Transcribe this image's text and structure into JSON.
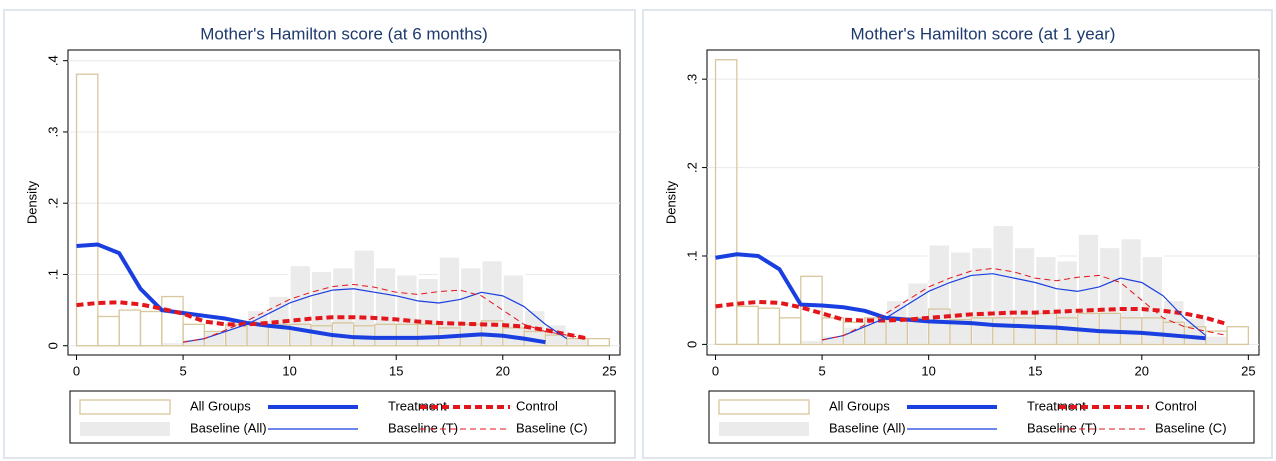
{
  "chart_data": [
    {
      "type": "histogram",
      "title": "Mother's Hamilton score (at 6 months)",
      "y_label": "Density",
      "xlim": [
        -0.4,
        25.5
      ],
      "xticks": [
        0,
        5,
        10,
        15,
        20,
        25
      ],
      "ylim": [
        -0.013,
        0.415
      ],
      "yticks": [
        0,
        {
          "value": 0.1,
          "label": ".1"
        },
        {
          "value": 0.2,
          "label": ".2"
        },
        {
          "value": 0.3,
          "label": ".3"
        },
        {
          "value": 0.4,
          "label": ".4"
        }
      ],
      "grid": true,
      "series": [
        {
          "name": "All Groups",
          "kind": "bar",
          "color": "#d8c79c",
          "bins": [
            0,
            1,
            2,
            3,
            4,
            5,
            6,
            7,
            8,
            9,
            10,
            11,
            12,
            13,
            14,
            15,
            16,
            17,
            18,
            19,
            20,
            21,
            22,
            23,
            24,
            25
          ],
          "values": [
            0.381,
            0.041,
            0.05,
            0.048,
            0.069,
            0.03,
            0.02,
            0.03,
            0.03,
            0.03,
            0.03,
            0.028,
            0.032,
            0.028,
            0.03,
            0.03,
            0.03,
            0.025,
            0.03,
            0.035,
            0.025,
            0.02,
            0.015,
            0.01,
            0.01
          ]
        },
        {
          "name": "Treatment",
          "kind": "line",
          "color": "#1a3fe0",
          "width": 4,
          "dash": false,
          "x": [
            0,
            1,
            2,
            3,
            4,
            5,
            6,
            7,
            8,
            9,
            10,
            11,
            12,
            13,
            14,
            15,
            16,
            17,
            18,
            19,
            20,
            21,
            22
          ],
          "values": [
            0.14,
            0.142,
            0.13,
            0.08,
            0.05,
            0.046,
            0.042,
            0.038,
            0.032,
            0.028,
            0.025,
            0.02,
            0.015,
            0.012,
            0.011,
            0.011,
            0.011,
            0.012,
            0.014,
            0.016,
            0.014,
            0.01,
            0.005
          ]
        },
        {
          "name": "Control",
          "kind": "line",
          "color": "#e3161c",
          "width": 4,
          "dash": true,
          "x": [
            0,
            1,
            2,
            3,
            4,
            5,
            6,
            7,
            8,
            9,
            10,
            11,
            12,
            13,
            14,
            15,
            16,
            17,
            18,
            19,
            20,
            21,
            22,
            23,
            24
          ],
          "values": [
            0.057,
            0.06,
            0.061,
            0.058,
            0.052,
            0.045,
            0.034,
            0.03,
            0.03,
            0.032,
            0.035,
            0.038,
            0.04,
            0.04,
            0.039,
            0.037,
            0.034,
            0.032,
            0.031,
            0.03,
            0.029,
            0.027,
            0.022,
            0.016,
            0.01
          ]
        },
        {
          "name": "Baseline (All)",
          "kind": "bar",
          "color": "#ebebeb",
          "bins": [
            4,
            5,
            6,
            7,
            8,
            9,
            10,
            11,
            12,
            13,
            14,
            15,
            16,
            17,
            18,
            19,
            20,
            21,
            22,
            23,
            24
          ],
          "values": [
            0.005,
            0.01,
            0.02,
            0.03,
            0.05,
            0.07,
            0.113,
            0.105,
            0.11,
            0.135,
            0.11,
            0.1,
            0.095,
            0.125,
            0.11,
            0.12,
            0.1,
            0.05,
            0.03,
            0.01
          ]
        },
        {
          "name": "Baseline (T)",
          "kind": "line",
          "color": "#1a3fe0",
          "width": 1.2,
          "dash": false,
          "x": [
            5,
            6,
            7,
            8,
            9,
            10,
            11,
            12,
            13,
            14,
            15,
            16,
            17,
            18,
            19,
            20,
            21,
            22,
            23
          ],
          "values": [
            0.005,
            0.01,
            0.02,
            0.03,
            0.045,
            0.06,
            0.07,
            0.078,
            0.08,
            0.075,
            0.07,
            0.063,
            0.06,
            0.065,
            0.075,
            0.07,
            0.055,
            0.03,
            0.01
          ]
        },
        {
          "name": "Baseline (C)",
          "kind": "line",
          "color": "#e3161c",
          "width": 1,
          "dash": true,
          "x": [
            5,
            6,
            7,
            8,
            9,
            10,
            11,
            12,
            13,
            14,
            15,
            16,
            17,
            18,
            19,
            20,
            21,
            22,
            23,
            24
          ],
          "values": [
            0.005,
            0.01,
            0.022,
            0.035,
            0.05,
            0.065,
            0.075,
            0.083,
            0.086,
            0.082,
            0.075,
            0.072,
            0.076,
            0.078,
            0.07,
            0.05,
            0.03,
            0.02,
            0.015,
            0.01
          ]
        }
      ]
    },
    {
      "type": "histogram",
      "title": "Mother's Hamilton score (at 1 year)",
      "y_label": "Density",
      "xlim": [
        -0.4,
        25.5
      ],
      "xticks": [
        0,
        5,
        10,
        15,
        20,
        25
      ],
      "ylim": [
        -0.012,
        0.333
      ],
      "yticks": [
        0,
        {
          "value": 0.1,
          "label": ".1"
        },
        {
          "value": 0.2,
          "label": ".2"
        },
        {
          "value": 0.3,
          "label": ".3"
        }
      ],
      "grid": true,
      "series": [
        {
          "name": "All Groups",
          "kind": "bar",
          "color": "#d8c79c",
          "bins": [
            0,
            1,
            2,
            3,
            4,
            5,
            6,
            7,
            8,
            9,
            10,
            11,
            12,
            13,
            14,
            15,
            16,
            17,
            18,
            19,
            20,
            21,
            22,
            23,
            24,
            25
          ],
          "values": [
            0.322,
            0.043,
            0.041,
            0.03,
            0.077,
            0.03,
            0.025,
            0.03,
            0.03,
            0.03,
            0.04,
            0.028,
            0.03,
            0.03,
            0.03,
            0.035,
            0.03,
            0.035,
            0.035,
            0.03,
            0.03,
            0.025,
            0.02,
            0.015,
            0.02
          ]
        },
        {
          "name": "Treatment",
          "kind": "line",
          "color": "#1a3fe0",
          "width": 4,
          "dash": false,
          "x": [
            0,
            1,
            2,
            3,
            4,
            5,
            6,
            7,
            8,
            9,
            10,
            11,
            12,
            13,
            14,
            15,
            16,
            17,
            18,
            19,
            20,
            21,
            22,
            23
          ],
          "values": [
            0.098,
            0.102,
            0.1,
            0.085,
            0.045,
            0.044,
            0.042,
            0.038,
            0.03,
            0.028,
            0.026,
            0.025,
            0.024,
            0.022,
            0.021,
            0.02,
            0.019,
            0.017,
            0.015,
            0.014,
            0.013,
            0.011,
            0.009,
            0.007
          ]
        },
        {
          "name": "Control",
          "kind": "line",
          "color": "#e3161c",
          "width": 4,
          "dash": true,
          "x": [
            0,
            1,
            2,
            3,
            4,
            5,
            6,
            7,
            8,
            9,
            10,
            11,
            12,
            13,
            14,
            15,
            16,
            17,
            18,
            19,
            20,
            21,
            22,
            23,
            24
          ],
          "values": [
            0.043,
            0.046,
            0.048,
            0.047,
            0.042,
            0.035,
            0.028,
            0.027,
            0.027,
            0.028,
            0.03,
            0.032,
            0.034,
            0.035,
            0.036,
            0.036,
            0.037,
            0.038,
            0.039,
            0.04,
            0.04,
            0.038,
            0.035,
            0.03,
            0.023
          ]
        },
        {
          "name": "Baseline (All)",
          "kind": "bar",
          "color": "#ebebeb",
          "bins": [
            4,
            5,
            6,
            7,
            8,
            9,
            10,
            11,
            12,
            13,
            14,
            15,
            16,
            17,
            18,
            19,
            20,
            21,
            22,
            23,
            24
          ],
          "values": [
            0.005,
            0.01,
            0.02,
            0.03,
            0.05,
            0.07,
            0.113,
            0.105,
            0.11,
            0.135,
            0.11,
            0.1,
            0.095,
            0.125,
            0.11,
            0.12,
            0.1,
            0.05,
            0.03,
            0.01
          ]
        },
        {
          "name": "Baseline (T)",
          "kind": "line",
          "color": "#1a3fe0",
          "width": 1.2,
          "dash": false,
          "x": [
            5,
            6,
            7,
            8,
            9,
            10,
            11,
            12,
            13,
            14,
            15,
            16,
            17,
            18,
            19,
            20,
            21,
            22,
            23
          ],
          "values": [
            0.005,
            0.01,
            0.02,
            0.03,
            0.045,
            0.06,
            0.07,
            0.078,
            0.08,
            0.075,
            0.07,
            0.063,
            0.06,
            0.065,
            0.075,
            0.07,
            0.055,
            0.03,
            0.01
          ]
        },
        {
          "name": "Baseline (C)",
          "kind": "line",
          "color": "#e3161c",
          "width": 1,
          "dash": true,
          "x": [
            5,
            6,
            7,
            8,
            9,
            10,
            11,
            12,
            13,
            14,
            15,
            16,
            17,
            18,
            19,
            20,
            21,
            22,
            23,
            24
          ],
          "values": [
            0.005,
            0.01,
            0.022,
            0.035,
            0.05,
            0.065,
            0.075,
            0.083,
            0.086,
            0.082,
            0.075,
            0.072,
            0.076,
            0.078,
            0.07,
            0.05,
            0.03,
            0.02,
            0.015,
            0.01
          ]
        }
      ]
    }
  ]
}
